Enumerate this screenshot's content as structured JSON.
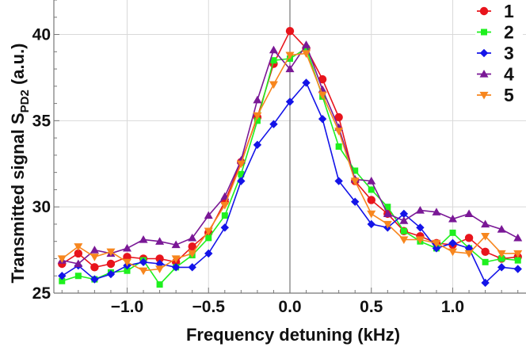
{
  "chart_data": {
    "type": "line",
    "xlabel": "Frequency detuning (kHz)",
    "ylabel_main": "Transmitted signal S",
    "ylabel_sub": "PD2",
    "ylabel_tail": " (a.u.)",
    "xlim": [
      -1.45,
      1.45
    ],
    "ylim": [
      25,
      42
    ],
    "x_ticks": [
      -1.0,
      -0.5,
      0.0,
      0.5,
      1.0
    ],
    "x_tick_labels": [
      "−1.0",
      "−0.5",
      "0.0",
      "0.5",
      "1.0"
    ],
    "y_ticks": [
      25,
      30,
      35,
      40
    ],
    "y_tick_labels": [
      "25",
      "30",
      "35",
      "40"
    ],
    "grid": true,
    "vertical_reference_line_x": 0.0,
    "legend_position": "top-right",
    "series": [
      {
        "name": "1",
        "color": "#e8141c",
        "marker": "circle",
        "points": [
          [
            -1.4,
            26.7
          ],
          [
            -1.3,
            27.3
          ],
          [
            -1.2,
            26.5
          ],
          [
            -1.1,
            26.7
          ],
          [
            -1.0,
            27.1
          ],
          [
            -0.9,
            27.0
          ],
          [
            -0.8,
            27.0
          ],
          [
            -0.7,
            26.8
          ],
          [
            -0.6,
            27.7
          ],
          [
            -0.5,
            28.5
          ],
          [
            -0.4,
            30.3
          ],
          [
            -0.3,
            32.6
          ],
          [
            -0.2,
            35.2
          ],
          [
            -0.1,
            38.3
          ],
          [
            0.0,
            40.2
          ],
          [
            0.1,
            39.2
          ],
          [
            0.2,
            37.4
          ],
          [
            0.3,
            35.2
          ],
          [
            0.4,
            31.5
          ],
          [
            0.5,
            30.4
          ],
          [
            0.6,
            29.6
          ],
          [
            0.7,
            28.6
          ],
          [
            0.8,
            28.3
          ],
          [
            0.9,
            27.9
          ],
          [
            1.0,
            27.8
          ],
          [
            1.1,
            28.2
          ],
          [
            1.2,
            27.4
          ],
          [
            1.3,
            27.0
          ],
          [
            1.4,
            27.1
          ]
        ]
      },
      {
        "name": "2",
        "color": "#1ef01e",
        "marker": "square",
        "points": [
          [
            -1.4,
            25.7
          ],
          [
            -1.3,
            26.0
          ],
          [
            -1.2,
            25.8
          ],
          [
            -1.1,
            26.2
          ],
          [
            -1.0,
            26.3
          ],
          [
            -0.9,
            26.9
          ],
          [
            -0.8,
            25.5
          ],
          [
            -0.7,
            26.5
          ],
          [
            -0.6,
            27.2
          ],
          [
            -0.5,
            28.2
          ],
          [
            -0.4,
            29.5
          ],
          [
            -0.3,
            31.9
          ],
          [
            -0.2,
            35.0
          ],
          [
            -0.1,
            38.5
          ],
          [
            0.0,
            38.6
          ],
          [
            0.1,
            39.2
          ],
          [
            0.2,
            36.4
          ],
          [
            0.3,
            33.5
          ],
          [
            0.4,
            32.1
          ],
          [
            0.5,
            31.0
          ],
          [
            0.6,
            30.0
          ],
          [
            0.7,
            28.6
          ],
          [
            0.8,
            28.0
          ],
          [
            0.9,
            27.6
          ],
          [
            1.0,
            28.5
          ],
          [
            1.1,
            27.6
          ],
          [
            1.2,
            26.8
          ],
          [
            1.3,
            27.0
          ],
          [
            1.4,
            26.9
          ]
        ]
      },
      {
        "name": "3",
        "color": "#1414e8",
        "marker": "diamond",
        "points": [
          [
            -1.4,
            26.0
          ],
          [
            -1.3,
            26.6
          ],
          [
            -1.2,
            25.8
          ],
          [
            -1.1,
            26.1
          ],
          [
            -1.0,
            26.6
          ],
          [
            -0.9,
            26.8
          ],
          [
            -0.8,
            26.7
          ],
          [
            -0.7,
            26.5
          ],
          [
            -0.6,
            26.5
          ],
          [
            -0.5,
            27.3
          ],
          [
            -0.4,
            28.8
          ],
          [
            -0.3,
            31.5
          ],
          [
            -0.2,
            33.6
          ],
          [
            -0.1,
            34.8
          ],
          [
            0.0,
            36.1
          ],
          [
            0.1,
            37.2
          ],
          [
            0.2,
            35.1
          ],
          [
            0.3,
            31.5
          ],
          [
            0.4,
            30.3
          ],
          [
            0.5,
            29.0
          ],
          [
            0.6,
            28.8
          ],
          [
            0.7,
            29.6
          ],
          [
            0.8,
            28.8
          ],
          [
            0.9,
            27.6
          ],
          [
            1.0,
            27.9
          ],
          [
            1.1,
            27.6
          ],
          [
            1.2,
            25.6
          ],
          [
            1.3,
            26.5
          ],
          [
            1.4,
            26.4
          ]
        ]
      },
      {
        "name": "4",
        "color": "#7a1896",
        "marker": "triangle-up",
        "points": [
          [
            -1.4,
            26.9
          ],
          [
            -1.3,
            26.7
          ],
          [
            -1.2,
            27.5
          ],
          [
            -1.1,
            27.3
          ],
          [
            -1.0,
            27.6
          ],
          [
            -0.9,
            28.1
          ],
          [
            -0.8,
            28.0
          ],
          [
            -0.7,
            27.8
          ],
          [
            -0.6,
            28.2
          ],
          [
            -0.5,
            29.5
          ],
          [
            -0.4,
            30.6
          ],
          [
            -0.3,
            32.7
          ],
          [
            -0.2,
            36.2
          ],
          [
            -0.1,
            39.1
          ],
          [
            0.0,
            38.0
          ],
          [
            0.1,
            39.4
          ],
          [
            0.2,
            36.8
          ],
          [
            0.3,
            34.6
          ],
          [
            0.4,
            31.6
          ],
          [
            0.5,
            31.5
          ],
          [
            0.6,
            29.6
          ],
          [
            0.7,
            29.2
          ],
          [
            0.8,
            29.8
          ],
          [
            0.9,
            29.7
          ],
          [
            1.0,
            29.3
          ],
          [
            1.1,
            29.6
          ],
          [
            1.2,
            29.0
          ],
          [
            1.3,
            28.7
          ],
          [
            1.4,
            28.2
          ]
        ]
      },
      {
        "name": "5",
        "color": "#f7861e",
        "marker": "triangle-down",
        "points": [
          [
            -1.4,
            27.0
          ],
          [
            -1.3,
            27.7
          ],
          [
            -1.2,
            27.1
          ],
          [
            -1.1,
            27.4
          ],
          [
            -1.0,
            26.8
          ],
          [
            -0.9,
            26.3
          ],
          [
            -0.8,
            26.4
          ],
          [
            -0.7,
            27.0
          ],
          [
            -0.6,
            27.3
          ],
          [
            -0.5,
            28.6
          ],
          [
            -0.4,
            30.1
          ],
          [
            -0.3,
            32.5
          ],
          [
            -0.2,
            35.3
          ],
          [
            -0.1,
            37.1
          ],
          [
            0.0,
            38.8
          ],
          [
            0.1,
            38.9
          ],
          [
            0.2,
            36.5
          ],
          [
            0.3,
            34.4
          ],
          [
            0.4,
            31.5
          ],
          [
            0.5,
            29.6
          ],
          [
            0.6,
            29.0
          ],
          [
            0.7,
            28.1
          ],
          [
            0.8,
            28.1
          ],
          [
            0.9,
            27.9
          ],
          [
            1.0,
            27.4
          ],
          [
            1.1,
            27.3
          ],
          [
            1.2,
            28.3
          ],
          [
            1.3,
            27.3
          ],
          [
            1.4,
            27.3
          ]
        ]
      }
    ]
  }
}
